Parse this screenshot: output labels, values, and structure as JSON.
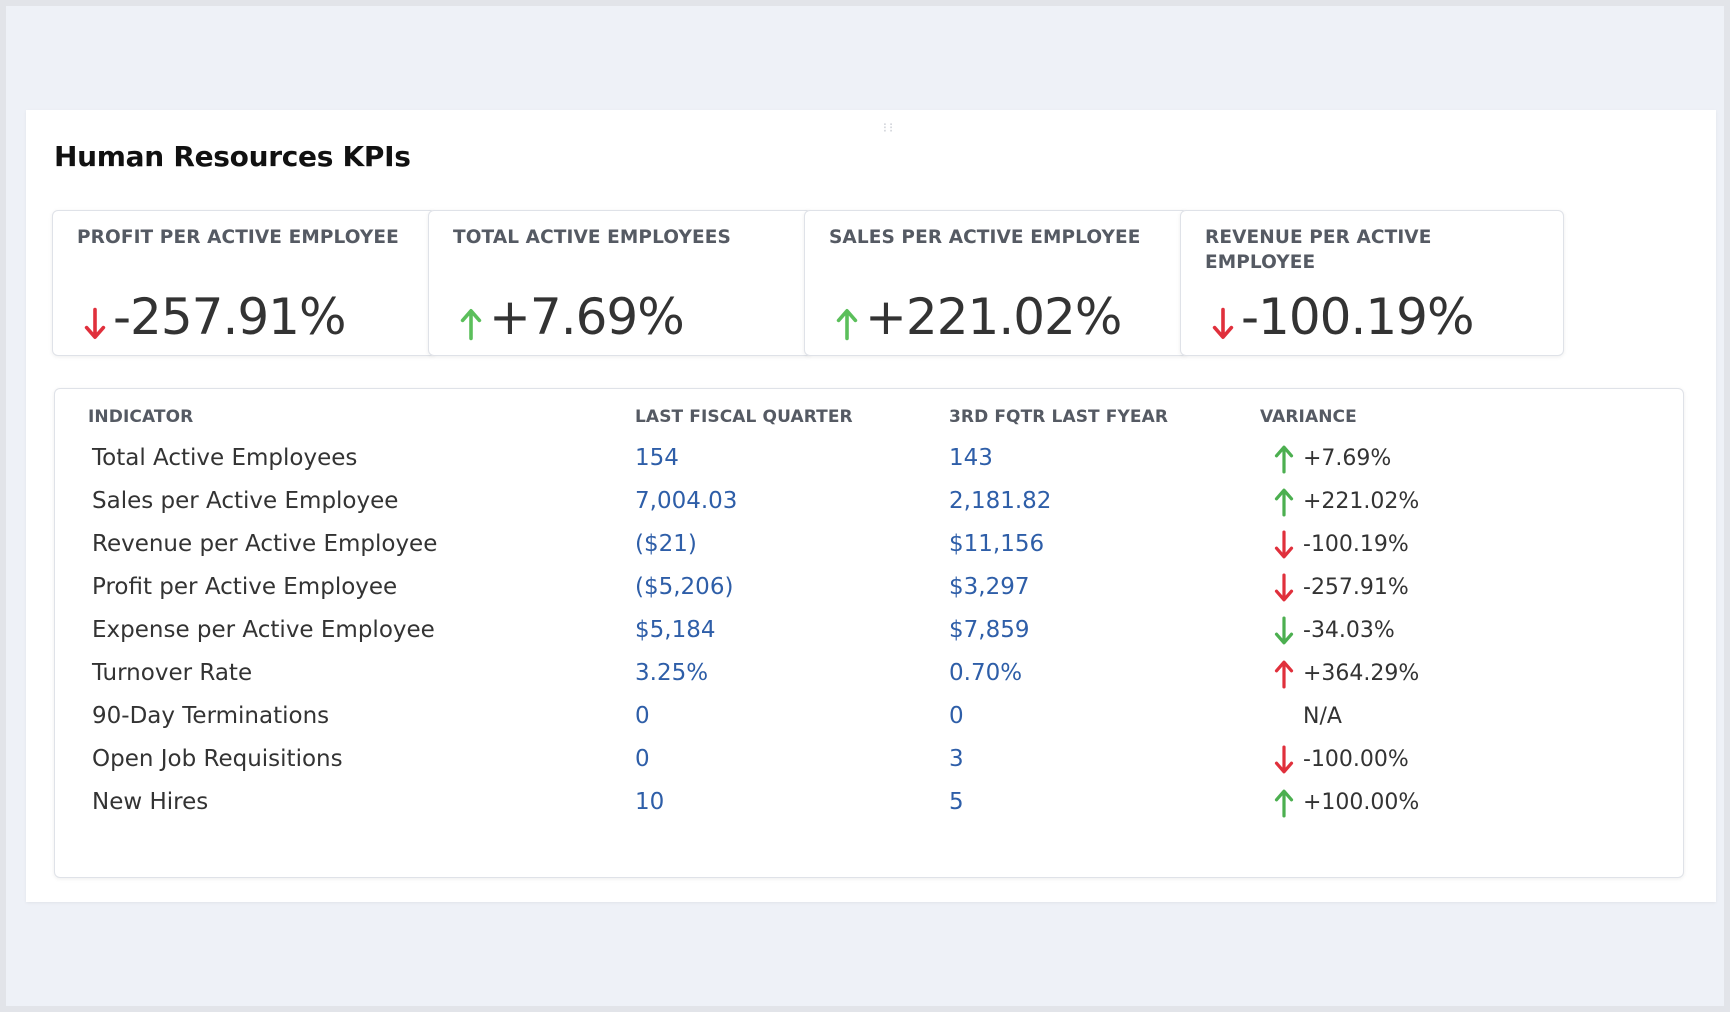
{
  "panel": {
    "title": "Human Resources KPIs",
    "drag_handle": "⁝⁝"
  },
  "kpis": [
    {
      "label": "PROFIT PER ACTIVE EMPLOYEE",
      "value": "-257.91%",
      "direction": "down",
      "arrow_color": "#e0303c"
    },
    {
      "label": "TOTAL ACTIVE EMPLOYEES",
      "value": "+7.69%",
      "direction": "up",
      "arrow_color": "#5bbf5b"
    },
    {
      "label": "SALES PER ACTIVE EMPLOYEE",
      "value": "+221.02%",
      "direction": "up",
      "arrow_color": "#5bbf5b"
    },
    {
      "label": "REVENUE PER ACTIVE EMPLOYEE",
      "value": "-100.19%",
      "direction": "down",
      "arrow_color": "#e0303c"
    }
  ],
  "table": {
    "headers": {
      "indicator": "INDICATOR",
      "last_quarter": "LAST FISCAL QUARTER",
      "prior": "3RD FQTR LAST FYEAR",
      "variance": "VARIANCE"
    },
    "rows": [
      {
        "indicator": "Total Active Employees",
        "last_quarter": "154",
        "prior": "143",
        "variance": "+7.69%",
        "direction": "up",
        "arrow_color": "#4caf50"
      },
      {
        "indicator": "Sales per Active Employee",
        "last_quarter": "7,004.03",
        "prior": "2,181.82",
        "variance": "+221.02%",
        "direction": "up",
        "arrow_color": "#4caf50"
      },
      {
        "indicator": "Revenue per Active Employee",
        "last_quarter": "($21)",
        "prior": "$11,156",
        "variance": "-100.19%",
        "direction": "down",
        "arrow_color": "#e0303c"
      },
      {
        "indicator": "Profit per Active Employee",
        "last_quarter": "($5,206)",
        "prior": "$3,297",
        "variance": "-257.91%",
        "direction": "down",
        "arrow_color": "#e0303c"
      },
      {
        "indicator": "Expense per Active Employee",
        "last_quarter": "$5,184",
        "prior": "$7,859",
        "variance": "-34.03%",
        "direction": "down",
        "arrow_color": "#4caf50"
      },
      {
        "indicator": "Turnover Rate",
        "last_quarter": "3.25%",
        "prior": "0.70%",
        "variance": "+364.29%",
        "direction": "up",
        "arrow_color": "#e0303c"
      },
      {
        "indicator": "90-Day Terminations",
        "last_quarter": "0",
        "prior": "0",
        "variance": "N/A",
        "direction": "none",
        "arrow_color": ""
      },
      {
        "indicator": "Open Job Requisitions",
        "last_quarter": "0",
        "prior": "3",
        "variance": "-100.00%",
        "direction": "down",
        "arrow_color": "#e0303c"
      },
      {
        "indicator": "New Hires",
        "last_quarter": "10",
        "prior": "5",
        "variance": "+100.00%",
        "direction": "up",
        "arrow_color": "#4caf50"
      }
    ]
  }
}
